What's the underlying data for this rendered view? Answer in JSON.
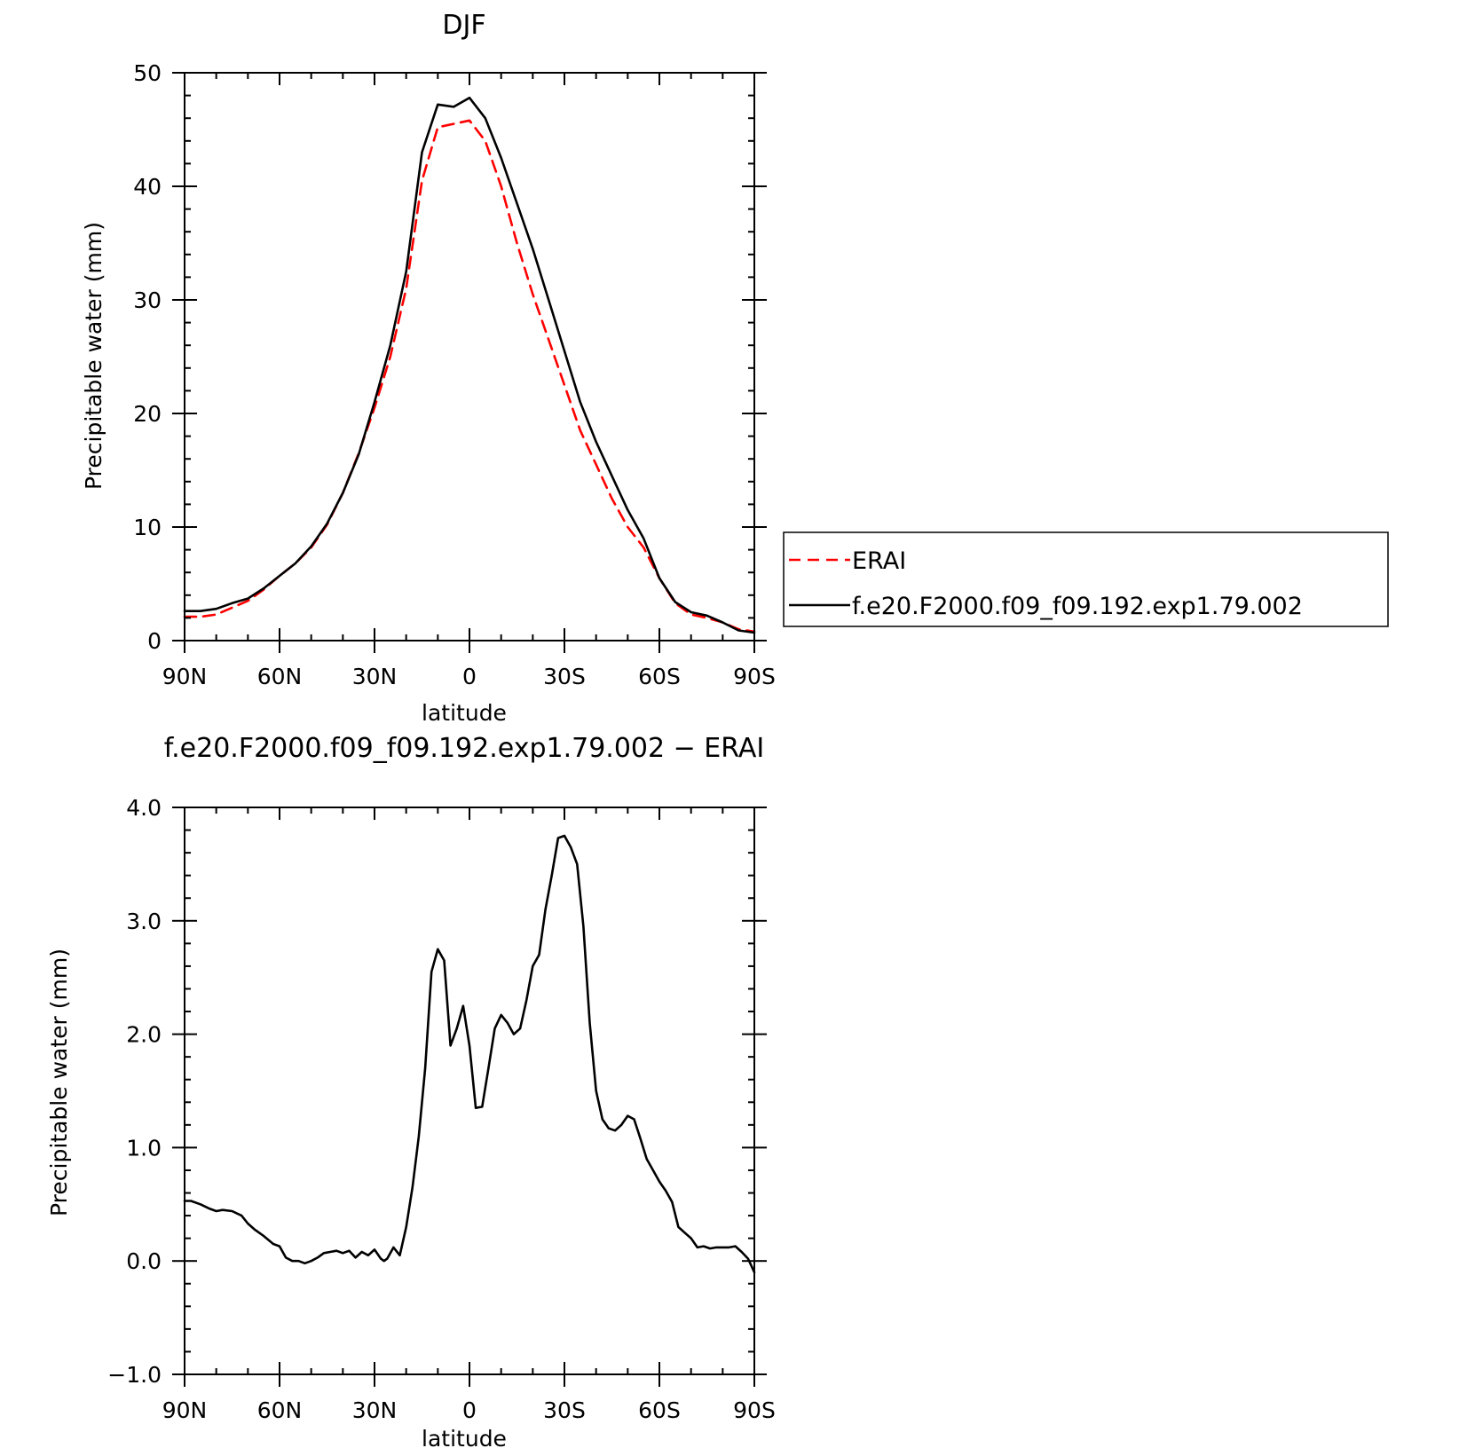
{
  "chart_data": [
    {
      "type": "line",
      "title": "DJF",
      "xlabel": "latitude",
      "ylabel": "Precipitable water (mm)",
      "xlim": [
        90,
        -90
      ],
      "ylim": [
        0,
        50
      ],
      "xticks": [
        90,
        60,
        30,
        0,
        -30,
        -60,
        -90
      ],
      "xtick_labels": [
        "90N",
        "60N",
        "30N",
        "0",
        "30S",
        "60S",
        "90S"
      ],
      "yticks": [
        0,
        10,
        20,
        30,
        40,
        50
      ],
      "ytick_labels": [
        "0",
        "10",
        "20",
        "30",
        "40",
        "50"
      ],
      "legend_position": "right",
      "x": [
        90,
        85,
        80,
        75,
        70,
        65,
        60,
        55,
        50,
        45,
        40,
        35,
        30,
        25,
        20,
        15,
        10,
        5,
        0,
        -5,
        -10,
        -15,
        -20,
        -25,
        -30,
        -35,
        -40,
        -45,
        -50,
        -55,
        -60,
        -65,
        -70,
        -75,
        -80,
        -85,
        -90
      ],
      "series": [
        {
          "name": "ERAI",
          "color": "#ff0000",
          "dash": "dashed",
          "values": [
            2.1,
            2.1,
            2.3,
            2.9,
            3.5,
            4.5,
            5.7,
            6.8,
            8.2,
            10.2,
            13.0,
            16.5,
            20.5,
            25.0,
            31.0,
            40.5,
            45.2,
            45.5,
            45.8,
            44.0,
            40.0,
            35.0,
            30.5,
            26.5,
            22.5,
            18.5,
            15.5,
            12.5,
            10.0,
            8.2,
            5.5,
            3.3,
            2.3,
            2.0,
            1.6,
            1.0,
            0.8
          ]
        },
        {
          "name": "f.e20.F2000.f09_f09.192.exp1.79.002",
          "color": "#000000",
          "dash": "solid",
          "values": [
            2.6,
            2.6,
            2.8,
            3.3,
            3.7,
            4.6,
            5.7,
            6.8,
            8.3,
            10.3,
            13.0,
            16.4,
            21.0,
            26.0,
            32.5,
            43.0,
            47.2,
            47.0,
            47.8,
            46.0,
            42.5,
            38.5,
            34.5,
            30.0,
            25.5,
            21.0,
            17.5,
            14.5,
            11.5,
            9.0,
            5.5,
            3.4,
            2.5,
            2.2,
            1.6,
            0.9,
            0.7
          ]
        }
      ]
    },
    {
      "type": "line",
      "title": "f.e20.F2000.f09_f09.192.exp1.79.002 − ERAI",
      "xlabel": "latitude",
      "ylabel": "Precipitable water (mm)",
      "xlim": [
        90,
        -90
      ],
      "ylim": [
        -1,
        4
      ],
      "xticks": [
        90,
        60,
        30,
        0,
        -30,
        -60,
        -90
      ],
      "xtick_labels": [
        "90N",
        "60N",
        "30N",
        "0",
        "30S",
        "60S",
        "90S"
      ],
      "yticks": [
        -1,
        0,
        1,
        2,
        3,
        4
      ],
      "ytick_labels": [
        "−1.0",
        "0.0",
        "1.0",
        "2.0",
        "3.0",
        "4.0"
      ],
      "x": [
        90,
        88,
        85,
        82,
        80,
        78,
        75,
        72,
        70,
        68,
        65,
        62,
        60,
        58,
        56,
        54,
        52,
        50,
        48,
        46,
        44,
        42,
        40,
        38,
        36,
        34,
        32,
        30,
        29,
        28,
        27,
        26,
        24,
        22,
        20,
        18,
        16,
        14,
        12,
        10,
        8,
        6,
        4,
        2,
        0,
        -2,
        -4,
        -6,
        -8,
        -10,
        -12,
        -14,
        -16,
        -18,
        -20,
        -22,
        -24,
        -26,
        -28,
        -30,
        -32,
        -34,
        -36,
        -38,
        -40,
        -42,
        -44,
        -46,
        -48,
        -50,
        -52,
        -54,
        -56,
        -58,
        -60,
        -62,
        -64,
        -66,
        -68,
        -70,
        -72,
        -74,
        -76,
        -78,
        -80,
        -82,
        -84,
        -86,
        -88,
        -90
      ],
      "series": [
        {
          "name": "",
          "color": "#000000",
          "dash": "solid",
          "values": [
            0.53,
            0.53,
            0.5,
            0.46,
            0.44,
            0.45,
            0.44,
            0.4,
            0.33,
            0.28,
            0.22,
            0.15,
            0.13,
            0.03,
            0.0,
            0.0,
            -0.02,
            0.0,
            0.03,
            0.07,
            0.08,
            0.09,
            0.07,
            0.09,
            0.03,
            0.08,
            0.05,
            0.1,
            0.06,
            0.02,
            0.0,
            0.02,
            0.12,
            0.05,
            0.3,
            0.65,
            1.1,
            1.7,
            2.55,
            2.75,
            2.65,
            1.9,
            2.05,
            2.25,
            1.9,
            1.35,
            1.36,
            1.7,
            2.05,
            2.17,
            2.1,
            2.0,
            2.05,
            2.3,
            2.6,
            2.7,
            3.1,
            3.4,
            3.73,
            3.75,
            3.65,
            3.5,
            2.95,
            2.1,
            1.5,
            1.25,
            1.17,
            1.15,
            1.2,
            1.28,
            1.25,
            1.08,
            0.9,
            0.8,
            0.7,
            0.62,
            0.52,
            0.3,
            0.25,
            0.2,
            0.12,
            0.13,
            0.11,
            0.12,
            0.12,
            0.12,
            0.13,
            0.08,
            0.02,
            -0.1
          ]
        }
      ]
    }
  ]
}
